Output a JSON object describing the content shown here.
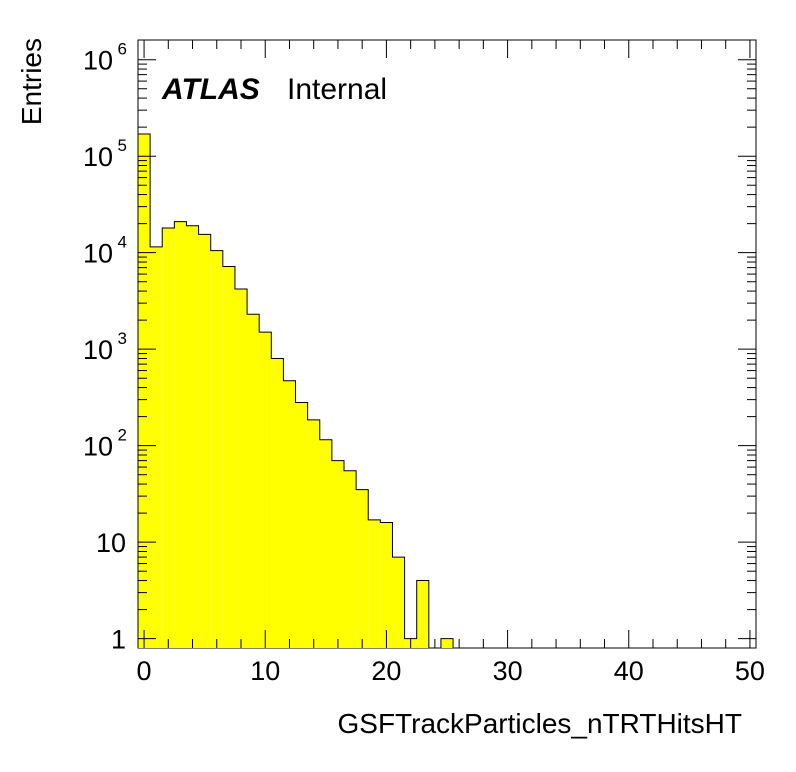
{
  "figure": {
    "atlas_label": "ATLAS",
    "atlas_status": "Internal"
  },
  "chart_data": {
    "type": "bar",
    "title": "",
    "xlabel": "GSFTrackParticles_nTRTHitsHT",
    "ylabel": "Entries",
    "xlim": [
      -0.5,
      50.5
    ],
    "ylim": [
      0.8,
      1600000
    ],
    "yscale": "log",
    "bin_width": 1,
    "x_ticks": [
      0,
      10,
      20,
      30,
      40,
      50
    ],
    "x_tick_labels": [
      "0",
      "10",
      "20",
      "30",
      "40",
      "50"
    ],
    "y_ticks": [
      1,
      10,
      100,
      1000,
      10000,
      100000,
      1000000
    ],
    "y_tick_labels": [
      {
        "base": "1",
        "exp": ""
      },
      {
        "base": "10",
        "exp": ""
      },
      {
        "base": "10",
        "exp": "2"
      },
      {
        "base": "10",
        "exp": "3"
      },
      {
        "base": "10",
        "exp": "4"
      },
      {
        "base": "10",
        "exp": "5"
      },
      {
        "base": "10",
        "exp": "6"
      }
    ],
    "bin_centers": [
      0,
      1,
      2,
      3,
      4,
      5,
      6,
      7,
      8,
      9,
      10,
      11,
      12,
      13,
      14,
      15,
      16,
      17,
      18,
      19,
      20,
      21,
      22,
      23,
      24,
      25
    ],
    "values": [
      170000,
      11500,
      18000,
      21000,
      19000,
      15500,
      10500,
      7200,
      4200,
      2300,
      1500,
      800,
      470,
      280,
      185,
      115,
      70,
      55,
      35,
      17,
      16,
      7,
      1,
      4,
      0,
      1
    ],
    "fill_color": "#ffff00",
    "line_color": "#000000",
    "grid": false,
    "legend": "none"
  }
}
